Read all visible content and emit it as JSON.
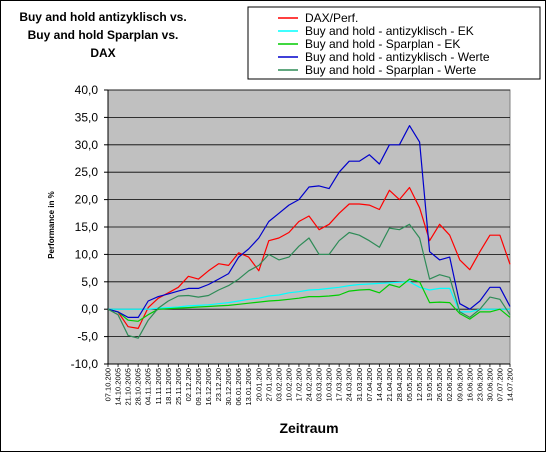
{
  "chart_data": {
    "type": "line",
    "title": [
      "Buy and hold antizyklisch vs.",
      "Buy and hold Sparplan vs.",
      "DAX"
    ],
    "xlabel": "Zeitraum",
    "ylabel": "Performance in %",
    "ylim": [
      -10,
      40
    ],
    "yticks": [
      "-10,0",
      "-5,0",
      "0,0",
      "5,0",
      "10,0",
      "15,0",
      "20,0",
      "25,0",
      "30,0",
      "35,0",
      "40,0"
    ],
    "grid": "horizontal",
    "plot_background": "#c0c0c0",
    "legend_position": "top-right",
    "x": [
      "07.10.200",
      "14.10.2005",
      "21.10.2005",
      "28.10.2005",
      "04.11.2005",
      "11.11.2005",
      "18.11.2005",
      "25.11.2005",
      "02.12.200",
      "09.12.2005",
      "16.12.2005",
      "23.12.200",
      "30.12.2005",
      "06.01.2006",
      "13.01.2006",
      "20.01.200",
      "27.01.200",
      "03.02.200",
      "10.02.200",
      "17.02.200",
      "24.02.200",
      "03.03.200",
      "10.03.200",
      "17.03.200",
      "24.03.200",
      "31.03.200",
      "07.04.200",
      "14.04.200",
      "21.04.200",
      "28.04.200",
      "05.05.200",
      "12.05.200",
      "19.05.200",
      "26.05.200",
      "02.06.200",
      "09.06.200",
      "16.06.200",
      "23.06.200",
      "30.06.200",
      "07.07.200",
      "14.07.200"
    ],
    "series": [
      {
        "name": "DAX/Perf.",
        "color": "#ff0000",
        "values": [
          0,
          -0.5,
          -3.2,
          -3.5,
          0.3,
          2.0,
          3.0,
          4.0,
          6.0,
          5.5,
          7.0,
          8.3,
          8.0,
          10.3,
          9.5,
          7.0,
          12.5,
          13.0,
          14.0,
          16.0,
          17.0,
          14.5,
          15.5,
          17.5,
          19.2,
          19.2,
          19.0,
          18.2,
          21.7,
          20.0,
          22.2,
          18.5,
          12.5,
          15.5,
          13.5,
          9.0,
          7.2,
          10.5,
          13.5,
          13.5,
          8.2
        ]
      },
      {
        "name": "Buy and hold - antizyklisch - EK",
        "color": "#00ffff",
        "values": [
          0,
          0,
          0,
          0,
          0,
          0.2,
          0.3,
          0.4,
          0.6,
          0.7,
          0.8,
          1.0,
          1.2,
          1.5,
          1.8,
          2.0,
          2.4,
          2.6,
          3.0,
          3.2,
          3.5,
          3.6,
          3.8,
          4.0,
          4.3,
          4.5,
          4.6,
          4.7,
          4.8,
          4.9,
          5.0,
          4.0,
          3.5,
          3.8,
          3.8,
          -0.5,
          -0.5,
          0,
          0,
          0,
          0
        ]
      },
      {
        "name": "Buy and hold - Sparplan - EK",
        "color": "#00cc00",
        "values": [
          0,
          -0.5,
          -2.0,
          -2.2,
          -1.0,
          0,
          0.1,
          0.2,
          0.3,
          0.4,
          0.5,
          0.6,
          0.7,
          0.9,
          1.1,
          1.3,
          1.5,
          1.6,
          1.8,
          2.0,
          2.3,
          2.3,
          2.4,
          2.6,
          3.3,
          3.5,
          3.6,
          3.0,
          4.5,
          4.0,
          5.5,
          5.0,
          1.2,
          1.3,
          1.2,
          -0.8,
          -1.8,
          -0.5,
          -0.5,
          0,
          -1.5
        ]
      },
      {
        "name": "Buy and hold - antizyklisch - Werte",
        "color": "#0000cc",
        "values": [
          0,
          -0.5,
          -1.5,
          -1.5,
          1.5,
          2.3,
          2.8,
          3.3,
          3.8,
          3.8,
          4.5,
          5.5,
          6.5,
          9.5,
          11.0,
          13.0,
          16.0,
          17.5,
          19.0,
          20.0,
          22.3,
          22.5,
          22.0,
          25.0,
          27.0,
          27.0,
          28.2,
          26.5,
          30.0,
          30.0,
          33.5,
          30.5,
          10.5,
          9.0,
          9.5,
          1.0,
          0,
          1.5,
          4.0,
          4.0,
          0.5
        ]
      },
      {
        "name": "Buy and hold - Sparplan - Werte",
        "color": "#2e8b57",
        "values": [
          0,
          -1.0,
          -4.8,
          -5.3,
          -2.0,
          0.2,
          1.5,
          2.4,
          2.5,
          2.2,
          2.5,
          3.5,
          4.3,
          5.5,
          7.0,
          8.0,
          10.0,
          9.0,
          9.5,
          11.5,
          13.0,
          10.0,
          10.0,
          12.5,
          14.0,
          13.5,
          12.5,
          11.3,
          14.8,
          14.5,
          15.5,
          13.0,
          5.5,
          6.3,
          5.8,
          -0.5,
          -1.5,
          0,
          2.2,
          1.8,
          -1.0
        ]
      }
    ]
  }
}
